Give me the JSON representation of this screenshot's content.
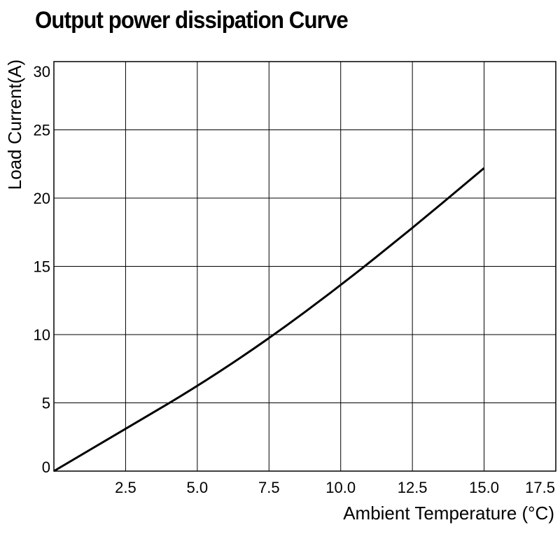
{
  "chart_data": {
    "type": "line",
    "title": "Output power dissipation Curve",
    "xlabel": "Ambient Temperature (°C)",
    "ylabel": "Load Current(A)",
    "xlim": [
      0,
      17.5
    ],
    "ylim": [
      0,
      30
    ],
    "x_ticks": [
      "2.5",
      "5.0",
      "7.5",
      "10.0",
      "12.5",
      "15.0",
      "17.5"
    ],
    "x_tick_values": [
      2.5,
      5.0,
      7.5,
      10.0,
      12.5,
      15.0,
      17.5
    ],
    "y_ticks": [
      "0",
      "5",
      "10",
      "15",
      "20",
      "25",
      "30"
    ],
    "y_tick_values": [
      0,
      5,
      10,
      15,
      20,
      25,
      30
    ],
    "grid": true,
    "series": [
      {
        "name": "Load Current",
        "x": [
          0,
          2.5,
          5.0,
          7.5,
          10.0,
          12.5,
          15.0
        ],
        "y": [
          0,
          3.1,
          6.2,
          9.7,
          13.6,
          17.8,
          22.2
        ]
      }
    ],
    "colors": {
      "line": "#000000",
      "grid": "#000000",
      "background": "#ffffff"
    }
  }
}
